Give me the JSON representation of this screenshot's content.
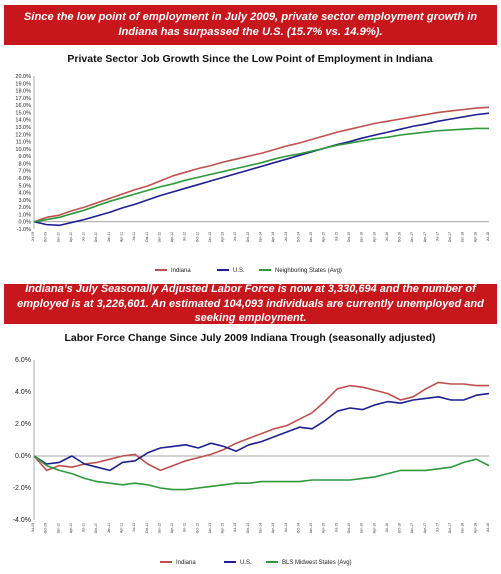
{
  "banner_top": "Since the low point of employment in July 2009, private sector employment growth in Indiana has surpassed the U.S. (15.7% vs. 14.9%).",
  "banner_middle": "Indiana’s July Seasonally Adjusted  Labor Force is now at 3,330,694 and the number of employed is at 3,226,601. An estimated 104,093 individuals are currently unemployed and seeking employment.",
  "colors": {
    "banner": "#c8161d",
    "indiana": "#c0504d",
    "us": "#1f1f8f",
    "neighbors": "#2e9a3a"
  },
  "chart_data": [
    {
      "type": "line",
      "title": "Private Sector Job Growth Since the Low Point of Employment in Indiana",
      "ylim": [
        -1.0,
        20.0
      ],
      "yticks": [
        "-1.0%",
        "0.0%",
        "1.0%",
        "2.0%",
        "3.0%",
        "4.0%",
        "5.0%",
        "6.0%",
        "7.0%",
        "8.0%",
        "9.0%",
        "10.0%",
        "11.0%",
        "12.0%",
        "13.0%",
        "14.0%",
        "15.0%",
        "16.0%",
        "17.0%",
        "18.0%",
        "19.0%",
        "20.0%"
      ],
      "ytick_values": [
        -1,
        0,
        1,
        2,
        3,
        4,
        5,
        6,
        7,
        8,
        9,
        10,
        11,
        12,
        13,
        14,
        15,
        16,
        17,
        18,
        19,
        20
      ],
      "x": [
        "Jul-09",
        "Oct-09",
        "Jan-10",
        "Apr-10",
        "Jul-10",
        "Oct-10",
        "Jan-11",
        "Apr-11",
        "Jul-11",
        "Oct-11",
        "Jan-12",
        "Apr-12",
        "Jul-12",
        "Oct-12",
        "Jan-13",
        "Apr-13",
        "Jul-13",
        "Oct-13",
        "Jan-14",
        "Apr-14",
        "Jul-14",
        "Oct-14",
        "Jan-15",
        "Apr-15",
        "Jul-15",
        "Oct-15",
        "Jan-16",
        "Apr-16",
        "Jul-16",
        "Oct-16",
        "Jan-17",
        "Apr-17",
        "Jul-17",
        "Oct-17",
        "Jan-18",
        "Apr-18",
        "Jul-18"
      ],
      "grid": false,
      "legend_position": "bottom",
      "series": [
        {
          "name": "Indiana",
          "color": "#c0504d",
          "values": [
            0.0,
            0.6,
            0.9,
            1.5,
            2.0,
            2.6,
            3.2,
            3.8,
            4.4,
            4.9,
            5.6,
            6.3,
            6.8,
            7.3,
            7.7,
            8.2,
            8.6,
            9.0,
            9.4,
            9.9,
            10.4,
            10.8,
            11.3,
            11.8,
            12.3,
            12.7,
            13.1,
            13.5,
            13.8,
            14.1,
            14.4,
            14.7,
            15.0,
            15.2,
            15.4,
            15.6,
            15.7
          ]
        },
        {
          "name": "U.S.",
          "color": "#1f1f8f",
          "values": [
            0.0,
            -0.4,
            -0.5,
            -0.1,
            0.3,
            0.8,
            1.3,
            1.9,
            2.4,
            3.0,
            3.6,
            4.1,
            4.6,
            5.1,
            5.6,
            6.1,
            6.6,
            7.1,
            7.6,
            8.1,
            8.6,
            9.1,
            9.6,
            10.1,
            10.6,
            11.0,
            11.5,
            11.9,
            12.3,
            12.7,
            13.1,
            13.4,
            13.8,
            14.1,
            14.4,
            14.7,
            14.9
          ]
        },
        {
          "name": "Neighboring States (Avg)",
          "color": "#2e9a3a",
          "values": [
            0.0,
            0.3,
            0.6,
            1.1,
            1.6,
            2.2,
            2.8,
            3.3,
            3.8,
            4.3,
            4.8,
            5.2,
            5.7,
            6.1,
            6.5,
            6.9,
            7.3,
            7.7,
            8.1,
            8.6,
            9.0,
            9.3,
            9.7,
            10.1,
            10.5,
            10.8,
            11.1,
            11.4,
            11.6,
            11.9,
            12.1,
            12.3,
            12.5,
            12.6,
            12.7,
            12.8,
            12.8
          ]
        }
      ]
    },
    {
      "type": "line",
      "title": "Labor Force Change Since July 2009 Indiana Trough (seasonally adjusted)",
      "ylim": [
        -4.0,
        6.0
      ],
      "yticks": [
        "-4.0%",
        "-2.0%",
        "0.0%",
        "2.0%",
        "4.0%",
        "6.0%"
      ],
      "ytick_values": [
        -4,
        -2,
        0,
        2,
        4,
        6
      ],
      "x": [
        "Jul-09",
        "Oct-09",
        "Jan-10",
        "Apr-10",
        "Jul-10",
        "Oct-10",
        "Jan-11",
        "Apr-11",
        "Jul-11",
        "Oct-11",
        "Jan-12",
        "Apr-12",
        "Jul-12",
        "Oct-12",
        "Jan-13",
        "Apr-13",
        "Jul-13",
        "Oct-13",
        "Jan-14",
        "Apr-14",
        "Jul-14",
        "Oct-14",
        "Jan-15",
        "Apr-15",
        "Jul-15",
        "Oct-15",
        "Jan-16",
        "Apr-16",
        "Jul-16",
        "Oct-16",
        "Jan-17",
        "Apr-17",
        "Jul-17",
        "Oct-17",
        "Jan-18",
        "Apr-18",
        "Jul-18"
      ],
      "grid": false,
      "legend_position": "bottom",
      "series": [
        {
          "name": "Indiana",
          "color": "#c0504d",
          "values": [
            0.0,
            -0.9,
            -0.6,
            -0.7,
            -0.5,
            -0.4,
            -0.2,
            0.0,
            0.1,
            -0.5,
            -0.9,
            -0.6,
            -0.3,
            -0.1,
            0.1,
            0.4,
            0.8,
            1.1,
            1.4,
            1.7,
            1.9,
            2.3,
            2.7,
            3.4,
            4.2,
            4.4,
            4.3,
            4.1,
            3.9,
            3.5,
            3.7,
            4.2,
            4.6,
            4.5,
            4.5,
            4.4,
            4.4
          ]
        },
        {
          "name": "U.S.",
          "color": "#1f1f8f",
          "values": [
            0.0,
            -0.5,
            -0.4,
            0.0,
            -0.5,
            -0.7,
            -0.9,
            -0.4,
            -0.3,
            0.2,
            0.5,
            0.6,
            0.7,
            0.5,
            0.8,
            0.6,
            0.3,
            0.7,
            0.9,
            1.2,
            1.5,
            1.8,
            1.7,
            2.2,
            2.8,
            3.0,
            2.9,
            3.2,
            3.4,
            3.3,
            3.5,
            3.6,
            3.7,
            3.5,
            3.5,
            3.8,
            3.9
          ]
        },
        {
          "name": "BLS Midwest States (Avg)",
          "color": "#2e9a3a",
          "values": [
            0.0,
            -0.6,
            -0.9,
            -1.1,
            -1.4,
            -1.6,
            -1.7,
            -1.8,
            -1.7,
            -1.8,
            -2.0,
            -2.1,
            -2.1,
            -2.0,
            -1.9,
            -1.8,
            -1.7,
            -1.7,
            -1.6,
            -1.6,
            -1.6,
            -1.6,
            -1.5,
            -1.5,
            -1.5,
            -1.5,
            -1.4,
            -1.3,
            -1.1,
            -0.9,
            -0.9,
            -0.9,
            -0.8,
            -0.7,
            -0.4,
            -0.2,
            -0.6
          ]
        }
      ]
    }
  ]
}
